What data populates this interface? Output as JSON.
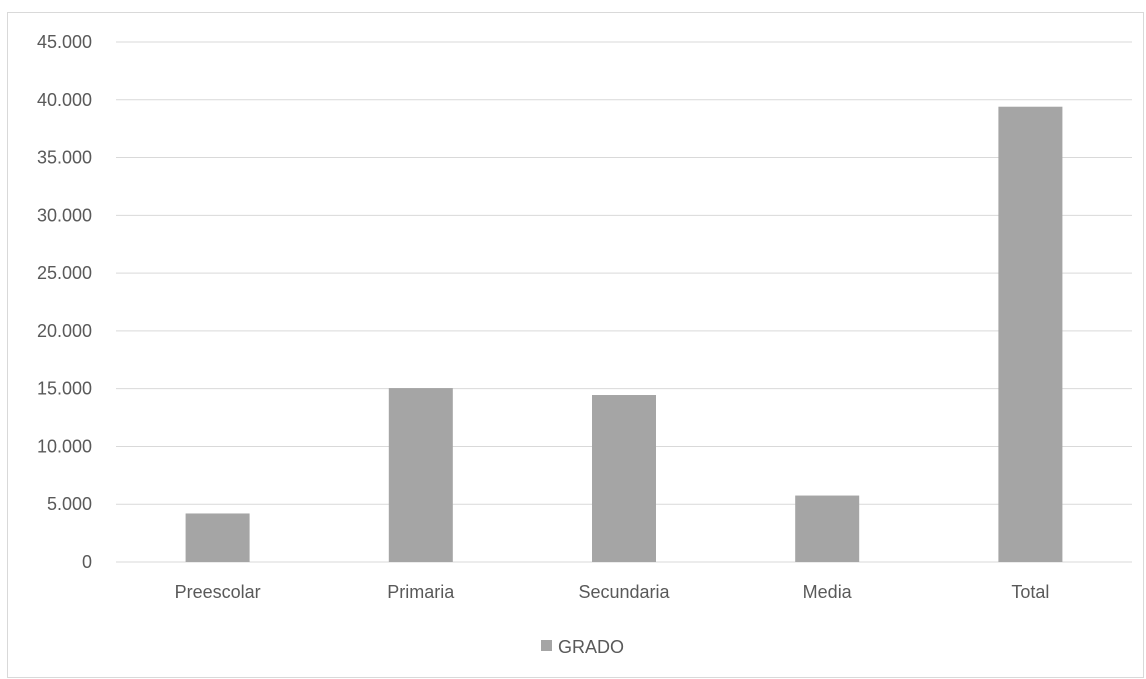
{
  "chart_data": {
    "type": "bar",
    "title": "",
    "xlabel": "",
    "ylabel": "",
    "categories": [
      "Preescolar",
      "Primaria",
      "Secundaria",
      "Media",
      "Total"
    ],
    "series": [
      {
        "name": "GRADO",
        "color": "#a5a5a5",
        "values": [
          4200,
          15050,
          14450,
          5750,
          39400
        ]
      }
    ],
    "ylim": [
      0,
      45000
    ],
    "yticks": [
      0,
      5000,
      10000,
      15000,
      20000,
      25000,
      30000,
      35000,
      40000,
      45000
    ],
    "ytick_labels": [
      "0",
      "5.000",
      "10.000",
      "15.000",
      "20.000",
      "25.000",
      "30.000",
      "35.000",
      "40.000",
      "45.000"
    ],
    "grid": true,
    "gridline_color": "#d9d9d9",
    "legend_position": "bottom"
  }
}
